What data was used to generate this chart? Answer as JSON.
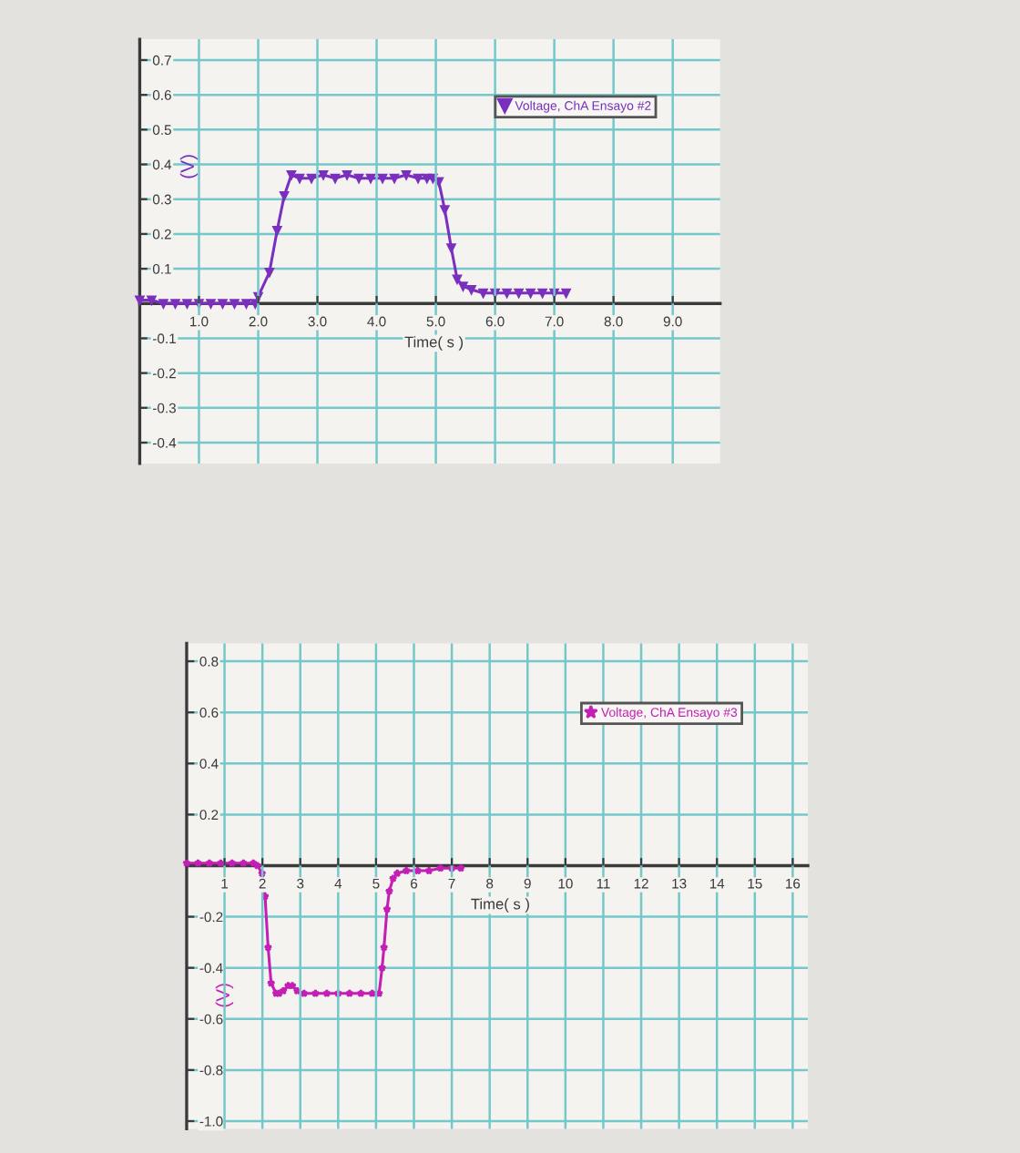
{
  "chart_data": [
    {
      "type": "line",
      "xlabel": "Time( s )",
      "ylabel": "(V)",
      "grid": true,
      "legend": "top right",
      "marker": "triangle",
      "line_style": "solid",
      "x": [
        0,
        0.2,
        0.4,
        0.6,
        0.8,
        1.0,
        1.2,
        1.4,
        1.6,
        1.8,
        1.95,
        2.0,
        2.19,
        2.32,
        2.44,
        2.56,
        2.7,
        2.9,
        3.1,
        3.3,
        3.5,
        3.7,
        3.9,
        4.1,
        4.3,
        4.5,
        4.7,
        4.85,
        4.95,
        5.05,
        5.15,
        5.26,
        5.36,
        5.46,
        5.6,
        5.8,
        6.0,
        6.2,
        6.4,
        6.6,
        6.8,
        7.0,
        7.2
      ],
      "series": [
        {
          "name": "Voltage, ChA Ensayo #2",
          "color": "#7b2fbe",
          "values": [
            0.01,
            0.01,
            0.0,
            0.0,
            0.0,
            0.0,
            0.0,
            0.0,
            0.0,
            0.0,
            0.0,
            0.02,
            0.09,
            0.21,
            0.31,
            0.37,
            0.36,
            0.36,
            0.37,
            0.36,
            0.37,
            0.36,
            0.36,
            0.36,
            0.36,
            0.37,
            0.36,
            0.36,
            0.36,
            0.35,
            0.27,
            0.16,
            0.07,
            0.05,
            0.04,
            0.03,
            0.03,
            0.03,
            0.03,
            0.03,
            0.03,
            0.03,
            0.03
          ]
        }
      ],
      "xlim": [
        0,
        9.8
      ],
      "ylim": [
        -0.46,
        0.76
      ],
      "xticks": [
        {
          "value": 1,
          "label": "1.0"
        },
        {
          "value": 2,
          "label": "2.0"
        },
        {
          "value": 3,
          "label": "3.0"
        },
        {
          "value": 4,
          "label": "4.0"
        },
        {
          "value": 5,
          "label": "5.0"
        },
        {
          "value": 6,
          "label": "6.0"
        },
        {
          "value": 7,
          "label": "7.0"
        },
        {
          "value": 8,
          "label": "8.0"
        },
        {
          "value": 9,
          "label": "9.0"
        }
      ],
      "yticks": [
        -0.4,
        -0.3,
        -0.2,
        -0.1,
        0.1,
        0.2,
        0.3,
        0.4,
        0.5,
        0.6,
        0.7
      ]
    },
    {
      "type": "line",
      "xlabel": "Time( s )",
      "ylabel": "(V)",
      "grid": true,
      "legend": "top right",
      "marker": "star",
      "line_style": "solid",
      "x": [
        0,
        0.3,
        0.6,
        0.9,
        1.2,
        1.5,
        1.76,
        1.87,
        1.99,
        2.07,
        2.15,
        2.23,
        2.36,
        2.44,
        2.55,
        2.68,
        2.79,
        2.92,
        3.1,
        3.4,
        3.7,
        4.0,
        4.3,
        4.6,
        4.9,
        5.08,
        5.16,
        5.21,
        5.29,
        5.35,
        5.45,
        5.56,
        5.8,
        6.1,
        6.4,
        6.7,
        7.0,
        7.24
      ],
      "series": [
        {
          "name": "Voltage, ChA Ensayo #3",
          "color": "#c41fb5",
          "values": [
            0.01,
            0.01,
            0.01,
            0.01,
            0.01,
            0.01,
            0.01,
            0.0,
            -0.03,
            -0.12,
            -0.32,
            -0.46,
            -0.5,
            -0.5,
            -0.49,
            -0.47,
            -0.47,
            -0.49,
            -0.5,
            -0.5,
            -0.5,
            -0.5,
            -0.5,
            -0.5,
            -0.5,
            -0.5,
            -0.4,
            -0.32,
            -0.17,
            -0.1,
            -0.05,
            -0.03,
            -0.02,
            -0.02,
            -0.02,
            -0.01,
            -0.01,
            -0.01
          ]
        }
      ],
      "xlim": [
        0,
        16.4
      ],
      "ylim": [
        -1.03,
        0.87
      ],
      "xticks": [
        1,
        2,
        3,
        4,
        5,
        6,
        7,
        8,
        9,
        10,
        11,
        12,
        13,
        14,
        15,
        16
      ],
      "yticks": [
        {
          "value": -1,
          "label": "-1.0"
        },
        -0.8,
        -0.6,
        -0.4,
        -0.2,
        0.2,
        0.4,
        0.6,
        0.8
      ]
    }
  ]
}
